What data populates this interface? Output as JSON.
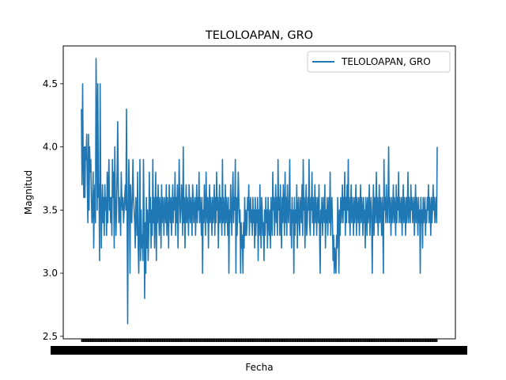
{
  "chart_data": {
    "type": "line",
    "title": "TELOLOAPAN, GRO",
    "xlabel": "Fecha",
    "ylabel": "Magnitud",
    "ylim": [
      2.48,
      4.8
    ],
    "yticks": [
      2.5,
      3.0,
      3.5,
      4.0,
      4.5
    ],
    "ytick_labels": [
      "2.5",
      "3.0",
      "3.5",
      "4.0",
      "4.5"
    ],
    "x_tick_labels_unreadable": true,
    "grid": false,
    "legend": {
      "position": "top-right"
    },
    "series": [
      {
        "name": "TELOLOAPAN, GRO",
        "color": "#1f77b4",
        "values": [
          4.3,
          3.7,
          4.5,
          3.9,
          3.6,
          4.0,
          3.6,
          4.0,
          3.9,
          4.1,
          3.7,
          3.4,
          4.1,
          3.5,
          4.0,
          3.8,
          3.9,
          3.6,
          3.4,
          3.5,
          3.8,
          3.2,
          3.6,
          3.7,
          3.4,
          4.7,
          4.2,
          3.5,
          4.5,
          3.6,
          3.7,
          3.1,
          4.5,
          3.7,
          3.2,
          3.5,
          3.7,
          3.4,
          3.6,
          3.3,
          3.7,
          3.5,
          3.6,
          3.3,
          3.8,
          3.4,
          3.7,
          3.9,
          3.5,
          3.6,
          3.4,
          3.6,
          3.3,
          3.9,
          3.6,
          3.8,
          3.2,
          4.0,
          3.6,
          3.3,
          3.5,
          3.8,
          4.2,
          3.7,
          3.4,
          3.6,
          3.5,
          3.3,
          3.8,
          3.6,
          3.5,
          3.6,
          3.4,
          3.5,
          3.6,
          3.7,
          3.5,
          4.3,
          3.5,
          2.6,
          3.5,
          3.9,
          3.6,
          3.0,
          3.7,
          3.5,
          3.4,
          3.6,
          3.9,
          3.6,
          3.5,
          3.4,
          3.2,
          3.6,
          3.5,
          3.3,
          3.8,
          3.2,
          3.0,
          3.4,
          3.9,
          3.1,
          3.5,
          3.2,
          3.3,
          3.1,
          3.9,
          3.5,
          2.8,
          3.4,
          3.0,
          3.6,
          3.2,
          3.5,
          3.1,
          3.3,
          3.8,
          3.4,
          3.6,
          3.2,
          3.5,
          3.3,
          3.9,
          3.4,
          3.6,
          3.2,
          3.5,
          3.8,
          3.1,
          3.6,
          3.4,
          3.7,
          3.5,
          3.3,
          3.6,
          3.5,
          3.2,
          3.7,
          3.4,
          3.6,
          3.5,
          3.3,
          3.6,
          3.5,
          3.4,
          3.7,
          3.3,
          3.6,
          3.5,
          3.2,
          3.7,
          3.5,
          3.4,
          3.6,
          3.3,
          3.5,
          3.7,
          3.4,
          3.6,
          3.5,
          3.8,
          3.3,
          3.6,
          3.4,
          3.7,
          3.2,
          3.5,
          3.9,
          3.6,
          3.4,
          3.5,
          3.7,
          3.6,
          3.3,
          4.0,
          3.4,
          3.6,
          3.2,
          3.5,
          3.7,
          3.4,
          3.6,
          3.5,
          3.3,
          3.7,
          3.5,
          3.4,
          3.6,
          3.5,
          3.3,
          3.7,
          3.6,
          3.4,
          3.5,
          3.6,
          3.3,
          3.5,
          3.7,
          3.4,
          3.6,
          3.5,
          3.8,
          3.4,
          3.6,
          3.5,
          3.3,
          3.6,
          3.0,
          3.5,
          3.4,
          3.7,
          3.5,
          3.3,
          3.8,
          3.5,
          3.4,
          3.6,
          3.2,
          3.5,
          3.7,
          3.4,
          3.6,
          3.5,
          3.3,
          3.6,
          3.4,
          3.5,
          3.7,
          3.3,
          3.6,
          3.4,
          3.8,
          3.5,
          3.6,
          3.2,
          3.5,
          3.7,
          3.4,
          3.6,
          3.5,
          3.3,
          3.9,
          3.4,
          3.6,
          3.5,
          3.3,
          3.7,
          3.4,
          3.6,
          3.5,
          3.3,
          3.6,
          3.0,
          3.5,
          3.4,
          3.7,
          3.5,
          3.3,
          3.6,
          3.8,
          3.4,
          3.6,
          3.5,
          3.9,
          3.0,
          3.6,
          3.3,
          3.5,
          3.8,
          3.6,
          3.4,
          3.5,
          3.0,
          3.4,
          3.2,
          3.3,
          3.0,
          3.4,
          3.2,
          3.6,
          3.3,
          3.5,
          3.3,
          3.4,
          3.6,
          3.5,
          3.7,
          3.3,
          3.5,
          3.6,
          3.4,
          3.5,
          3.3,
          3.6,
          3.4,
          3.5,
          3.2,
          3.6,
          3.3,
          3.5,
          3.4,
          3.6,
          3.1,
          3.5,
          3.3,
          3.7,
          3.4,
          3.2,
          3.6,
          3.5,
          3.3,
          3.4,
          3.1,
          3.5,
          3.3,
          3.6,
          3.4,
          3.5,
          3.2,
          3.6,
          3.4,
          3.3,
          3.5,
          3.2,
          3.6,
          3.4,
          3.3,
          3.8,
          3.5,
          3.6,
          3.3,
          3.5,
          3.7,
          3.4,
          3.6,
          3.3,
          3.9,
          3.5,
          3.6,
          3.3,
          3.7,
          3.4,
          3.2,
          3.6,
          3.4,
          3.7,
          3.5,
          3.3,
          3.8,
          3.4,
          3.6,
          3.3,
          3.7,
          3.5,
          3.4,
          3.6,
          3.9,
          3.3,
          3.5,
          3.2,
          3.6,
          3.4,
          3.5,
          3.0,
          3.6,
          3.3,
          3.5,
          3.4,
          3.7,
          3.2,
          3.5,
          3.6,
          3.4,
          3.3,
          3.6,
          3.5,
          3.4,
          3.7,
          3.3,
          3.9,
          3.5,
          3.6,
          3.2,
          3.5,
          3.7,
          3.3,
          3.4,
          3.6,
          3.5,
          3.9,
          3.4,
          3.3,
          3.6,
          3.5,
          3.8,
          3.4,
          3.6,
          3.3,
          3.5,
          3.7,
          3.4,
          3.6,
          3.3,
          3.5,
          3.6,
          3.4,
          3.7,
          3.3,
          3.0,
          3.5,
          3.4,
          3.6,
          3.3,
          3.5,
          3.6,
          3.4,
          3.7,
          3.2,
          3.5,
          3.4,
          3.6,
          3.3,
          3.5,
          3.6,
          3.4,
          3.8,
          3.3,
          3.5,
          3.6,
          3.4,
          3.1,
          3.3,
          3.0,
          3.2,
          3.1,
          3.0,
          3.3,
          3.2,
          3.6,
          3.4,
          3.0,
          3.5,
          3.3,
          3.6,
          3.4,
          3.5,
          3.7,
          3.4,
          3.6,
          3.5,
          3.8,
          3.3,
          3.6,
          3.4,
          3.7,
          3.5,
          3.9,
          3.4,
          3.6,
          3.3,
          3.5,
          3.7,
          3.4,
          3.6,
          3.5,
          3.3,
          3.6,
          3.4,
          3.5,
          3.7,
          3.3,
          3.6,
          3.5,
          3.4,
          3.6,
          3.3,
          3.5,
          3.7,
          3.4,
          3.6,
          3.5,
          3.3,
          3.6,
          3.4,
          3.5,
          3.2,
          3.6,
          3.5,
          3.3,
          3.6,
          3.4,
          3.5,
          3.7,
          3.3,
          3.5,
          3.6,
          3.4,
          3.0,
          3.5,
          3.7,
          3.3,
          3.6,
          3.4,
          3.5,
          3.8,
          3.4,
          3.6,
          3.3,
          3.5,
          3.7,
          3.4,
          3.6,
          3.5,
          3.3,
          3.6,
          3.4,
          3.0,
          3.9,
          3.5,
          3.6,
          3.4,
          3.7,
          3.5,
          3.4,
          3.6,
          4.0,
          3.4,
          3.6,
          3.5,
          3.3,
          3.6,
          3.4,
          3.5,
          3.7,
          3.4,
          3.6,
          3.5,
          3.3,
          3.7,
          3.4,
          3.6,
          3.5,
          3.8,
          3.4,
          3.6,
          3.5,
          3.4,
          3.6,
          3.3,
          3.5,
          3.7,
          3.4,
          3.6,
          3.5,
          3.3,
          3.6,
          3.4,
          3.5,
          3.8,
          3.4,
          3.6,
          3.5,
          3.4,
          3.7,
          3.5,
          3.6,
          3.4,
          3.5,
          3.6,
          3.3,
          3.5,
          3.7,
          3.4,
          3.6,
          3.5,
          3.3,
          3.6,
          3.4,
          3.5,
          3.0,
          3.6,
          3.4,
          3.5,
          3.2,
          3.6,
          3.4,
          3.5,
          3.6,
          3.3,
          3.5,
          3.4,
          3.6,
          3.5,
          3.7,
          3.4,
          3.6,
          3.5,
          3.3,
          3.6,
          3.4,
          3.5,
          3.7,
          3.5,
          3.6,
          3.4,
          3.5,
          3.6,
          3.4,
          4.0
        ]
      }
    ]
  }
}
